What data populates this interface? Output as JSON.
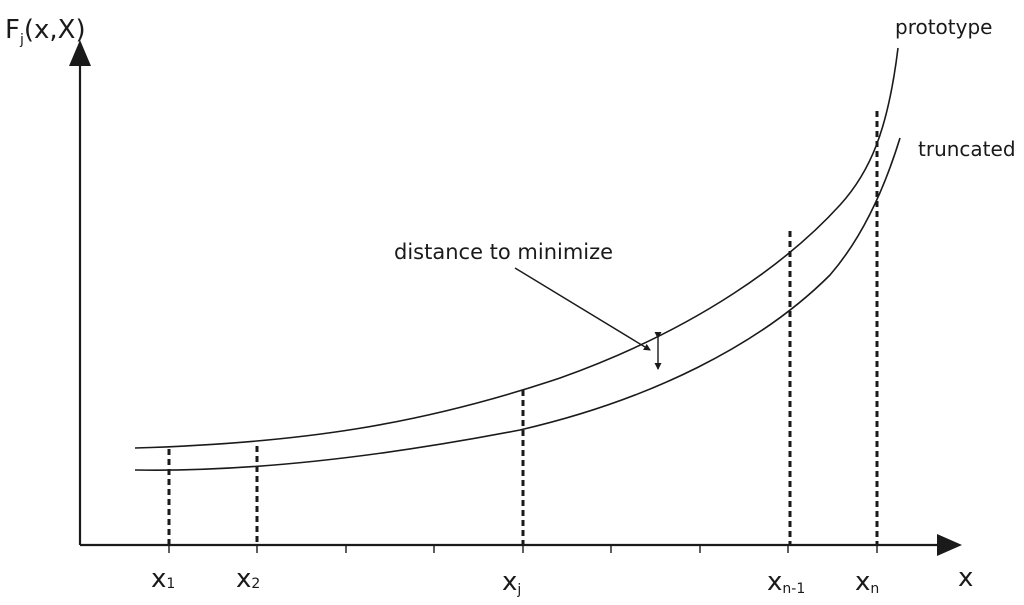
{
  "y_axis": {
    "base": "F",
    "sub": "j",
    "rest": "(x,X)"
  },
  "x_axis": {
    "label": "x"
  },
  "curves": {
    "prototype": "prototype",
    "truncated": "truncated"
  },
  "annotation": "distance to minimize",
  "points": [
    {
      "base": "x",
      "sub": "1"
    },
    {
      "base": "x",
      "sub": "2"
    },
    {
      "base": "x",
      "sub": "j"
    },
    {
      "base": "x",
      "sub": "n-1"
    },
    {
      "base": "x",
      "sub": "n"
    }
  ]
}
